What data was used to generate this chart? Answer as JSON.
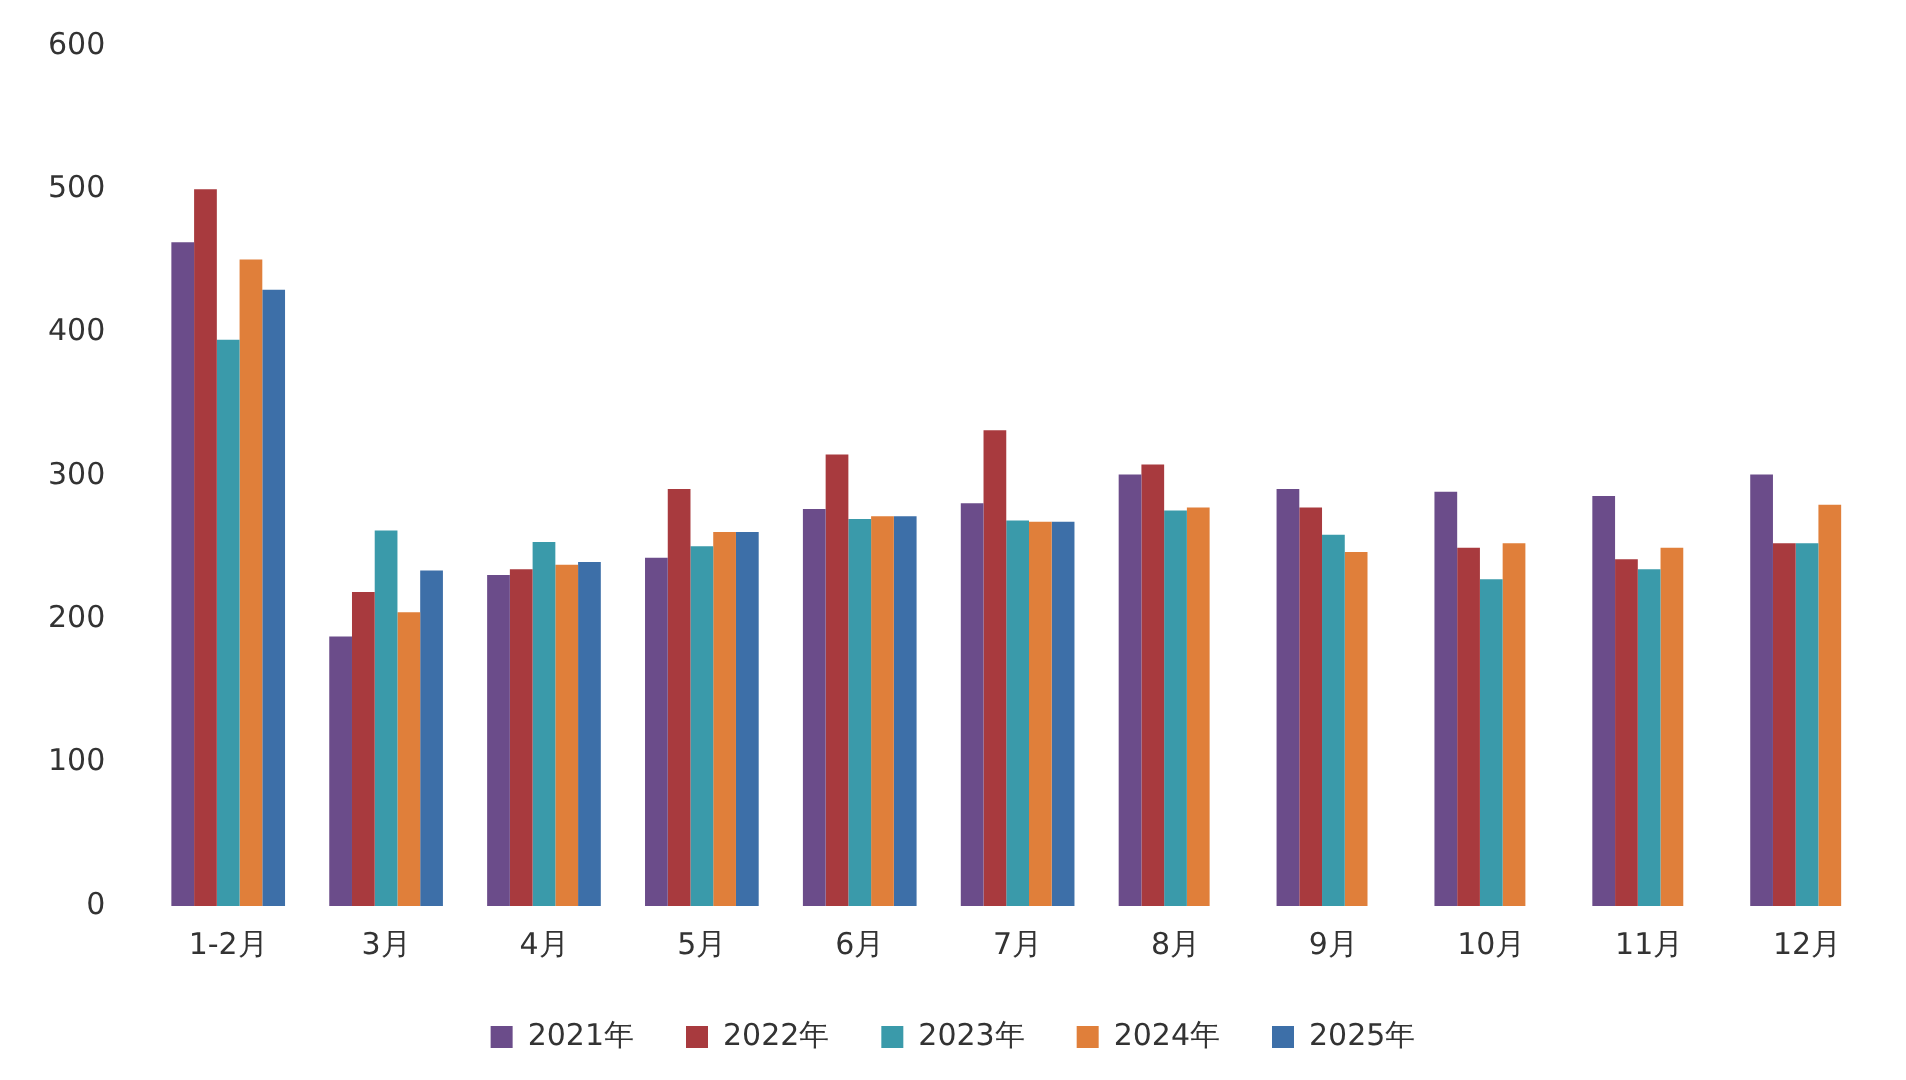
{
  "chart_data": {
    "type": "bar",
    "categories": [
      "1-2月",
      "3月",
      "4月",
      "5月",
      "6月",
      "7月",
      "8月",
      "9月",
      "10月",
      "11月",
      "12月"
    ],
    "series": [
      {
        "name": "2021年",
        "color": "#6b4c8a",
        "values": [
          463,
          188,
          231,
          243,
          277,
          281,
          301,
          291,
          289,
          286,
          301
        ]
      },
      {
        "name": "2022年",
        "color": "#a83a3e",
        "values": [
          500,
          219,
          235,
          291,
          315,
          332,
          308,
          278,
          250,
          242,
          253
        ]
      },
      {
        "name": "2023年",
        "color": "#3a9aaa",
        "values": [
          395,
          262,
          254,
          251,
          270,
          269,
          276,
          259,
          228,
          235,
          253
        ]
      },
      {
        "name": "2024年",
        "color": "#e07f3a",
        "values": [
          451,
          205,
          238,
          261,
          272,
          268,
          278,
          247,
          253,
          250,
          280
        ]
      },
      {
        "name": "2025年",
        "color": "#3d6fa8",
        "values": [
          430,
          234,
          240,
          261,
          272,
          268,
          null,
          null,
          null,
          null,
          null
        ]
      }
    ],
    "ylim": [
      0,
      600
    ],
    "yticks": [
      0,
      100,
      200,
      300,
      400,
      500,
      600
    ],
    "grid": false,
    "legend": "bottom"
  }
}
